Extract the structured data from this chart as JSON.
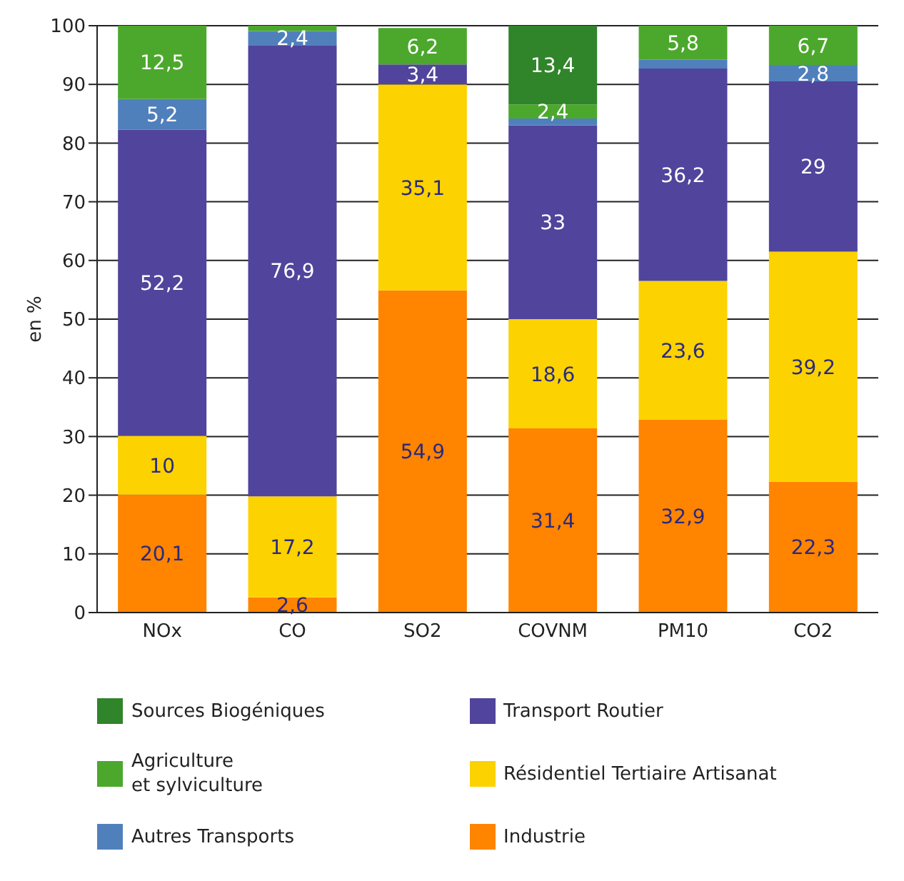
{
  "chart_data": {
    "type": "bar",
    "stacked": true,
    "ylabel": "en %",
    "categories": [
      "NOx",
      "CO",
      "SO2",
      "COVNM",
      "PM10",
      "CO2"
    ],
    "ylim": [
      0,
      100
    ],
    "yticks": [
      0,
      10,
      20,
      30,
      40,
      50,
      60,
      70,
      80,
      90,
      100
    ],
    "grid": "y",
    "legend": "bottom",
    "series": [
      {
        "name": "Industrie",
        "color": "#ff8400",
        "values": [
          20.1,
          2.6,
          54.9,
          31.4,
          32.9,
          22.3
        ],
        "value_labels": [
          "20,1",
          "2,6",
          "54,9",
          "31,4",
          "32,9",
          "22,3"
        ]
      },
      {
        "name": "Résidentiel Tertiaire Artisanat",
        "color": "#fcd200",
        "values": [
          10,
          17.2,
          35.1,
          18.6,
          23.6,
          39.2
        ],
        "value_labels": [
          "10",
          "17,2",
          "35,1",
          "18,6",
          "23,6",
          "39,2"
        ]
      },
      {
        "name": "Transport Routier",
        "color": "#50449c",
        "values": [
          52.2,
          76.9,
          3.4,
          33,
          36.2,
          29
        ],
        "value_labels": [
          "52,2",
          "76,9",
          "3,4",
          "33",
          "36,2",
          "29"
        ]
      },
      {
        "name": "Autres Transports",
        "color": "#5080bc",
        "values": [
          5.2,
          2.4,
          null,
          1.2,
          1.5,
          2.8
        ],
        "value_labels": [
          "5,2",
          "2,4",
          null,
          null,
          null,
          "2,8"
        ]
      },
      {
        "name": "Agriculture\net sylviculture",
        "color": "#4ca82c",
        "values": [
          12.5,
          0.9,
          6.2,
          2.4,
          5.8,
          6.7
        ],
        "value_labels": [
          "12,5",
          null,
          "6,2",
          "2,4",
          "5,8",
          "6,7"
        ]
      },
      {
        "name": "Sources Biogéniques",
        "color": "#30842a",
        "values": [
          null,
          null,
          null,
          13.4,
          null,
          null
        ],
        "value_labels": [
          null,
          null,
          null,
          "13,4",
          null,
          null
        ]
      }
    ]
  }
}
